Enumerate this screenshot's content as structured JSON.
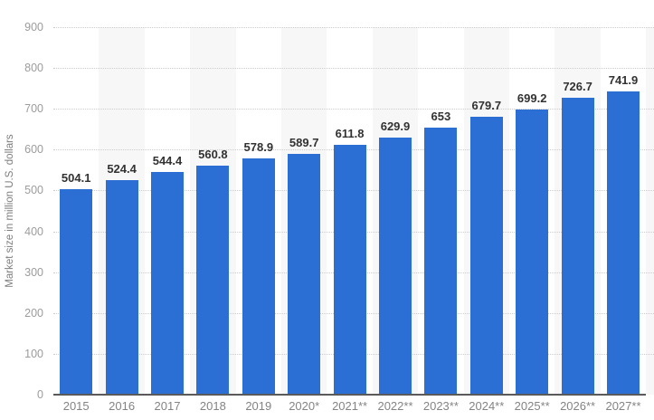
{
  "chart_data": {
    "type": "bar",
    "title": "",
    "xlabel": "",
    "ylabel": "Market size in million U.S. dollars",
    "categories": [
      "2015",
      "2016",
      "2017",
      "2018",
      "2019",
      "2020*",
      "2021**",
      "2022**",
      "2023**",
      "2024**",
      "2025**",
      "2026**",
      "2027**"
    ],
    "values": [
      504.1,
      524.4,
      544.4,
      560.8,
      578.9,
      589.7,
      611.8,
      629.9,
      653,
      679.7,
      699.2,
      726.7,
      741.9
    ],
    "value_labels": [
      "504.1",
      "524.4",
      "544.4",
      "560.8",
      "578.9",
      "589.7",
      "611.8",
      "629.9",
      "653",
      "679.7",
      "699.2",
      "726.7",
      "741.9"
    ],
    "ylim": [
      0,
      900
    ],
    "yticks": [
      0,
      100,
      200,
      300,
      400,
      500,
      600,
      700,
      800,
      900
    ],
    "grid": "horizontal-dotted",
    "legend_position": "none",
    "colors": {
      "bar": "#2b6fd4",
      "stripe": "#f7f7f7",
      "grid": "#cccccc",
      "axis_line": "#5a5a5a",
      "y_tick_label": "#9c9c9c",
      "x_tick_label": "#848484",
      "value_label": "#323232",
      "background": "#ffffff"
    }
  }
}
